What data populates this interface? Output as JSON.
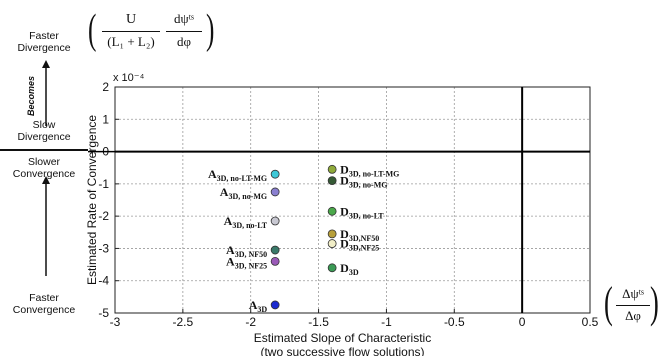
{
  "side_annotations": {
    "faster_divergence": [
      "Faster",
      "Divergence"
    ],
    "becomes": "Becomes",
    "slow_divergence": [
      "Slow",
      "Divergence"
    ],
    "slower_convergence": [
      "Slower",
      "Convergence"
    ],
    "faster_convergence": [
      "Faster",
      "Convergence"
    ]
  },
  "formulas": {
    "y_formula": {
      "numerator_left": "U",
      "denominator_left": "(L₁ + L₂)",
      "numerator_right": "dψᵗˢ",
      "denominator_right": "dφ"
    },
    "x_formula": {
      "numerator": "Δψᵗˢ",
      "denominator": "Δφ"
    }
  },
  "chart_data": {
    "type": "scatter",
    "xlabel": "Estimated Slope of Characteristic",
    "xlabel_line2": "(two successive flow solutions)",
    "ylabel": "Estimated Rate of Convergence",
    "y_multiplier": "x 10⁻⁴",
    "xlim": [
      -3,
      0.5
    ],
    "ylim": [
      -5,
      2
    ],
    "xticks": [
      -3,
      -2.5,
      -2,
      -1.5,
      -1,
      -0.5,
      0,
      0.5
    ],
    "xtick_labels": [
      "-3",
      "-2.5",
      "-2",
      "-1.5",
      "-1",
      "-0.5",
      "0",
      "0.5"
    ],
    "yticks": [
      -5,
      -4,
      -3,
      -2,
      -1,
      0,
      1,
      2
    ],
    "ytick_labels": [
      "-5",
      "-4",
      "-3",
      "-2",
      "-1",
      "0",
      "1",
      "2"
    ],
    "grid": true,
    "points": [
      {
        "label": "A",
        "sub": "3D, no-LT-MG",
        "x": -1.82,
        "y": -0.7,
        "color": "#3fc9d8",
        "side": "left"
      },
      {
        "label": "A",
        "sub": "3D, no-MG",
        "x": -1.82,
        "y": -1.25,
        "color": "#8a7fd0",
        "side": "left"
      },
      {
        "label": "A",
        "sub": "3D, no-LT",
        "x": -1.82,
        "y": -2.15,
        "color": "#c8c8d2",
        "side": "left"
      },
      {
        "label": "A",
        "sub": "3D, NF50",
        "x": -1.82,
        "y": -3.05,
        "color": "#3a7a6a",
        "side": "left"
      },
      {
        "label": "A",
        "sub": "3D, NF25",
        "x": -1.82,
        "y": -3.4,
        "color": "#9a5ab8",
        "side": "left"
      },
      {
        "label": "A",
        "sub": "3D",
        "x": -1.82,
        "y": -4.75,
        "color": "#1c2bd0",
        "side": "left"
      },
      {
        "label": "D",
        "sub": "3D, no-LT-MG",
        "x": -1.4,
        "y": -0.55,
        "color": "#8faa3a",
        "side": "right"
      },
      {
        "label": "D",
        "sub": "3D, no-MG",
        "x": -1.4,
        "y": -0.9,
        "color": "#355a35",
        "side": "right"
      },
      {
        "label": "D",
        "sub": "3D, no-LT",
        "x": -1.4,
        "y": -1.85,
        "color": "#4aa84a",
        "side": "right"
      },
      {
        "label": "D",
        "sub": "3D,NF50",
        "x": -1.4,
        "y": -2.55,
        "color": "#b8a03a",
        "side": "right"
      },
      {
        "label": "D",
        "sub": "3D,NF25",
        "x": -1.4,
        "y": -2.85,
        "color": "#f2efc8",
        "side": "right"
      },
      {
        "label": "D",
        "sub": "3D",
        "x": -1.4,
        "y": -3.6,
        "color": "#3a9a55",
        "side": "right"
      }
    ]
  }
}
